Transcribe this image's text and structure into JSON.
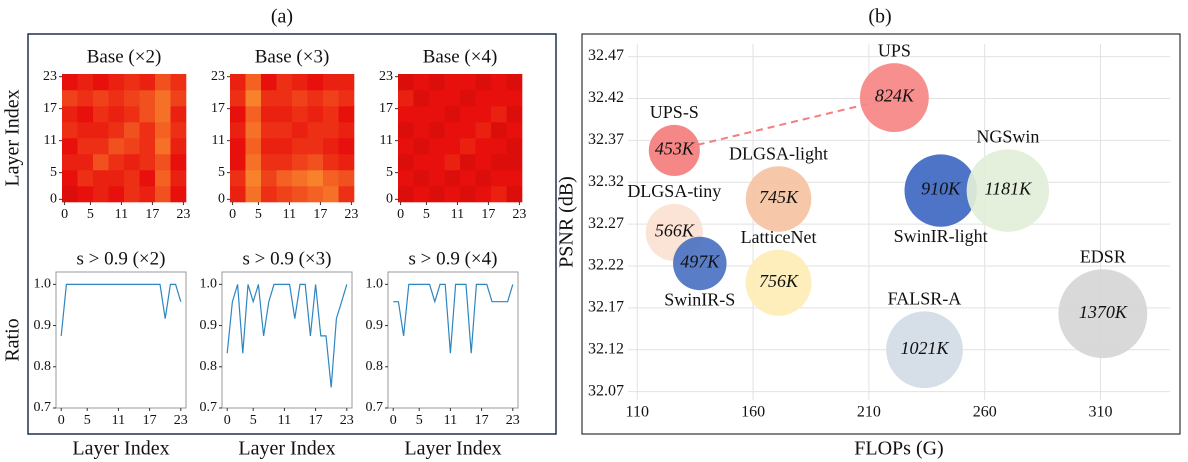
{
  "panel_labels": [
    "(a)",
    "(b)"
  ],
  "chart_data": [
    {
      "type": "heatmap",
      "title": "Base (×2)",
      "y_label": "Layer Index",
      "xlim": [
        -0.5,
        23.5
      ],
      "ylim": [
        -0.5,
        23.5
      ],
      "xticks": [
        0,
        5,
        11,
        17,
        23
      ],
      "yticks": [
        0,
        5,
        11,
        17,
        23
      ],
      "zlim": [
        0,
        1
      ],
      "colors": [
        "#6e0000",
        "#e8100c",
        "#ffb23a"
      ],
      "values": [
        [
          0.45,
          0.5,
          0.55,
          0.5,
          0.6,
          0.55,
          0.7,
          0.5
        ],
        [
          0.5,
          0.6,
          0.55,
          0.55,
          0.6,
          0.5,
          0.75,
          0.55
        ],
        [
          0.55,
          0.55,
          0.7,
          0.6,
          0.55,
          0.6,
          0.7,
          0.5
        ],
        [
          0.5,
          0.6,
          0.6,
          0.7,
          0.65,
          0.6,
          0.8,
          0.55
        ],
        [
          0.6,
          0.55,
          0.55,
          0.6,
          0.7,
          0.6,
          0.75,
          0.6
        ],
        [
          0.55,
          0.5,
          0.6,
          0.55,
          0.6,
          0.7,
          0.8,
          0.55
        ],
        [
          0.65,
          0.6,
          0.65,
          0.6,
          0.65,
          0.7,
          0.8,
          0.65
        ],
        [
          0.5,
          0.55,
          0.5,
          0.55,
          0.6,
          0.55,
          0.7,
          0.6
        ]
      ]
    },
    {
      "type": "heatmap",
      "title": "Base (×3)",
      "xlim": [
        -0.5,
        23.5
      ],
      "ylim": [
        -0.5,
        23.5
      ],
      "xticks": [
        0,
        5,
        11,
        17,
        23
      ],
      "yticks": [
        0,
        5,
        11,
        17,
        23
      ],
      "zlim": [
        0,
        1
      ],
      "colors": [
        "#6e0000",
        "#e8100c",
        "#ffb23a"
      ],
      "values": [
        [
          0.55,
          0.8,
          0.6,
          0.65,
          0.7,
          0.75,
          0.8,
          0.6
        ],
        [
          0.6,
          0.85,
          0.65,
          0.75,
          0.8,
          0.85,
          0.75,
          0.7
        ],
        [
          0.5,
          0.8,
          0.6,
          0.6,
          0.65,
          0.7,
          0.6,
          0.55
        ],
        [
          0.5,
          0.75,
          0.55,
          0.55,
          0.6,
          0.6,
          0.55,
          0.5
        ],
        [
          0.55,
          0.8,
          0.6,
          0.6,
          0.55,
          0.6,
          0.6,
          0.55
        ],
        [
          0.5,
          0.75,
          0.55,
          0.55,
          0.6,
          0.55,
          0.6,
          0.5
        ],
        [
          0.6,
          0.85,
          0.6,
          0.6,
          0.65,
          0.6,
          0.65,
          0.6
        ],
        [
          0.55,
          0.75,
          0.5,
          0.6,
          0.55,
          0.5,
          0.55,
          0.55
        ]
      ]
    },
    {
      "type": "heatmap",
      "title": "Base (×4)",
      "xlim": [
        -0.5,
        23.5
      ],
      "ylim": [
        -0.5,
        23.5
      ],
      "xticks": [
        0,
        5,
        11,
        17,
        23
      ],
      "yticks": [
        0,
        5,
        11,
        17,
        23
      ],
      "zlim": [
        0,
        1
      ],
      "colors": [
        "#6e0000",
        "#e8100c",
        "#ffb23a"
      ],
      "values": [
        [
          0.45,
          0.5,
          0.45,
          0.5,
          0.45,
          0.5,
          0.55,
          0.45
        ],
        [
          0.5,
          0.45,
          0.5,
          0.45,
          0.5,
          0.45,
          0.5,
          0.5
        ],
        [
          0.45,
          0.5,
          0.5,
          0.55,
          0.45,
          0.5,
          0.45,
          0.45
        ],
        [
          0.5,
          0.45,
          0.5,
          0.5,
          0.55,
          0.5,
          0.5,
          0.45
        ],
        [
          0.45,
          0.5,
          0.45,
          0.5,
          0.5,
          0.55,
          0.45,
          0.5
        ],
        [
          0.5,
          0.5,
          0.5,
          0.45,
          0.5,
          0.5,
          0.55,
          0.45
        ],
        [
          0.55,
          0.45,
          0.5,
          0.5,
          0.45,
          0.5,
          0.5,
          0.5
        ],
        [
          0.45,
          0.5,
          0.45,
          0.5,
          0.5,
          0.45,
          0.5,
          0.45
        ]
      ]
    },
    {
      "type": "line",
      "title": "s > 0.9 (×2)",
      "x_label": "Layer Index",
      "y_label": "Ratio",
      "color": "#2e86c1",
      "xlim": [
        -1,
        24
      ],
      "ylim": [
        0.7,
        1.03
      ],
      "xticks": [
        0,
        5,
        11,
        17,
        23
      ],
      "yticks": [
        0.7,
        0.8,
        0.9,
        {
          "value": 1,
          "label": "1.0"
        }
      ],
      "x": [
        0,
        1,
        2,
        3,
        4,
        5,
        6,
        7,
        8,
        9,
        10,
        11,
        12,
        13,
        14,
        15,
        16,
        17,
        18,
        19,
        20,
        21,
        22,
        23
      ],
      "values": [
        0.875,
        1,
        1,
        1,
        1,
        1,
        1,
        1,
        1,
        1,
        1,
        1,
        1,
        1,
        1,
        1,
        1,
        1,
        1,
        1,
        0.917,
        1,
        1,
        0.958
      ]
    },
    {
      "type": "line",
      "title": "s > 0.9 (×3)",
      "x_label": "Layer Index",
      "color": "#2e86c1",
      "xlim": [
        -1,
        24
      ],
      "ylim": [
        0.7,
        1.03
      ],
      "xticks": [
        0,
        5,
        11,
        17,
        23
      ],
      "yticks": [
        0.7,
        0.8,
        0.9,
        {
          "value": 1,
          "label": "1.0"
        }
      ],
      "x": [
        0,
        1,
        2,
        3,
        4,
        5,
        6,
        7,
        8,
        9,
        10,
        11,
        12,
        13,
        14,
        15,
        16,
        17,
        18,
        19,
        20,
        21,
        22,
        23
      ],
      "values": [
        0.833,
        0.958,
        1,
        0.833,
        1,
        0.958,
        1,
        0.875,
        0.958,
        1,
        1,
        1,
        1,
        0.917,
        1,
        1,
        0.875,
        1,
        0.875,
        0.875,
        0.75,
        0.917,
        0.958,
        1
      ]
    },
    {
      "type": "line",
      "title": "s > 0.9 (×4)",
      "x_label": "Layer Index",
      "color": "#2e86c1",
      "xlim": [
        -1,
        24
      ],
      "ylim": [
        0.7,
        1.03
      ],
      "xticks": [
        0,
        5,
        11,
        17,
        23
      ],
      "yticks": [
        0.7,
        0.8,
        0.9,
        {
          "value": 1,
          "label": "1.0"
        }
      ],
      "x": [
        0,
        1,
        2,
        3,
        4,
        5,
        6,
        7,
        8,
        9,
        10,
        11,
        12,
        13,
        14,
        15,
        16,
        17,
        18,
        19,
        20,
        21,
        22,
        23
      ],
      "values": [
        0.958,
        0.958,
        0.875,
        1,
        1,
        1,
        1,
        1,
        0.958,
        1,
        1,
        0.833,
        1,
        1,
        1,
        0.833,
        1,
        1,
        1,
        0.958,
        0.958,
        0.958,
        0.958,
        1
      ]
    },
    {
      "type": "bubble",
      "x_label": "FLOPs (G)",
      "y_label": "PSNR (dB)",
      "grid": true,
      "xlim": [
        106,
        340
      ],
      "ylim": [
        32.06,
        32.485
      ],
      "xticks": [
        110,
        160,
        210,
        260,
        310
      ],
      "yticks": [
        32.07,
        32.12,
        32.17,
        32.22,
        32.27,
        32.32,
        32.37,
        32.42,
        32.47
      ],
      "points": [
        {
          "name": "UPS-S",
          "x": 126,
          "y": 32.358,
          "size": 453,
          "size_label": "453K",
          "color": "#f47d7d"
        },
        {
          "name": "UPS",
          "x": 221,
          "y": 32.421,
          "size": 824,
          "size_label": "824K",
          "color": "#f78585"
        },
        {
          "name": "DLGSA-light",
          "x": 171,
          "y": 32.3,
          "size": 745,
          "size_label": "745K",
          "color": "#f5c2a2"
        },
        {
          "name": "DLGSA-tiny",
          "x": 126,
          "y": 32.26,
          "size": 566,
          "size_label": "566K",
          "color": "#fbe1d2"
        },
        {
          "name": "SwinIR-S",
          "x": 137,
          "y": 32.223,
          "size": 497,
          "size_label": "497K",
          "color": "#4b72c2"
        },
        {
          "name": "LatticeNet",
          "x": 171,
          "y": 32.2,
          "size": 756,
          "size_label": "756K",
          "color": "#fdedb5"
        },
        {
          "name": "SwinIR-light",
          "x": 241,
          "y": 32.31,
          "size": 910,
          "size_label": "910K",
          "color": "#3f68c2"
        },
        {
          "name": "NGSwin",
          "x": 270,
          "y": 32.31,
          "size": 1181,
          "size_label": "1181K",
          "color": "#e2efd9"
        },
        {
          "name": "FALSR-A",
          "x": 234,
          "y": 32.12,
          "size": 1021,
          "size_label": "1021K",
          "color": "#d3dbe6"
        },
        {
          "name": "EDSR",
          "x": 311,
          "y": 32.163,
          "size": 1370,
          "size_label": "1370K",
          "color": "#d6d6d6"
        }
      ]
    }
  ]
}
